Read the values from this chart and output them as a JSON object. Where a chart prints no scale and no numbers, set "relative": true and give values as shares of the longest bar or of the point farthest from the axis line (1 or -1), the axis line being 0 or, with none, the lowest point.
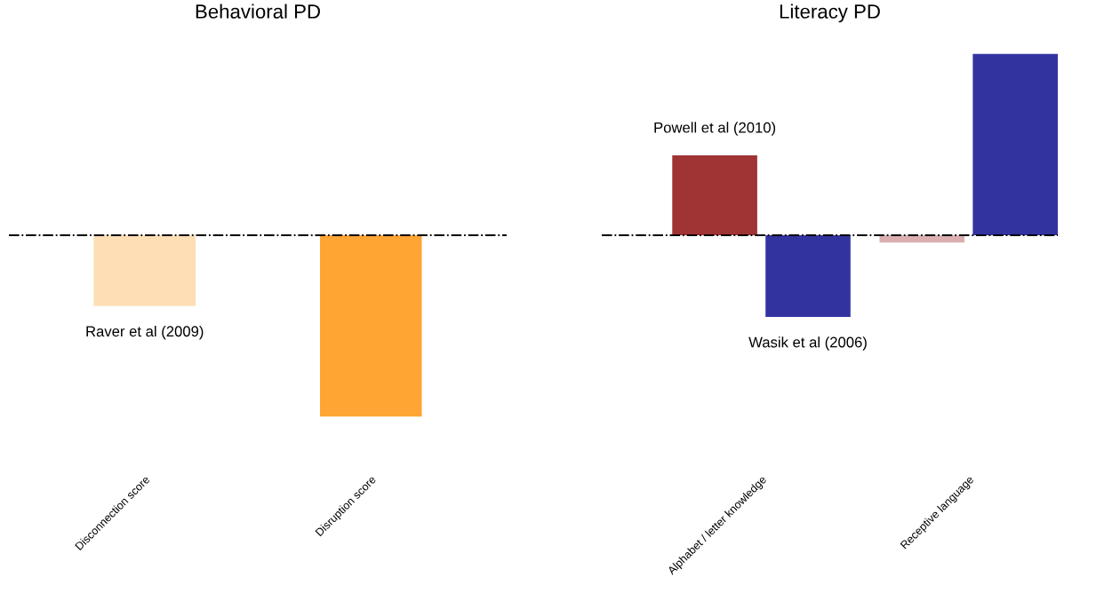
{
  "chart_data": [
    {
      "type": "bar",
      "title": "Behavioral PD",
      "relative": true,
      "categories": [
        "Disconnection score",
        "Disruption score"
      ],
      "series": [
        {
          "name": "Raver et al (2009)",
          "colors": [
            "#fddeb5",
            "#ffa533"
          ],
          "values": [
            -0.39,
            -1
          ]
        }
      ],
      "ref_lines": [
        {
          "axis": "y",
          "value": 0,
          "color": "#000000",
          "line_style": "dashdot"
        }
      ],
      "legend": false
    },
    {
      "type": "bar",
      "title": "Literacy PD",
      "relative": true,
      "categories": [
        "Alphabet / letter knowledge",
        "Receptive language"
      ],
      "series": [
        {
          "name": "Powell et al (2010)",
          "colors": [
            "#a03333",
            "#dbafb0"
          ],
          "values": [
            0.44,
            -0.04
          ]
        },
        {
          "name": "Wasik et al (2006)",
          "color": "#3333a0",
          "values": [
            -0.45,
            1
          ]
        }
      ],
      "ref_lines": [
        {
          "axis": "y",
          "value": 0,
          "color": "#000000",
          "line_style": "dashdot"
        }
      ],
      "legend": false
    }
  ]
}
